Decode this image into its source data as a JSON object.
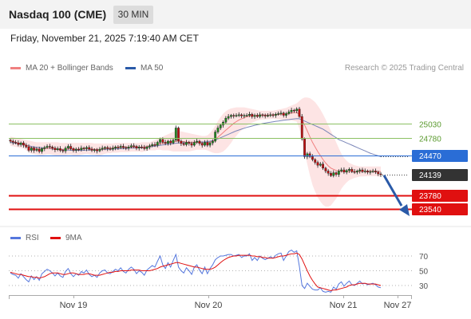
{
  "header": {
    "title": "Nasdaq 100 (CME)",
    "timeframe": "30 MIN"
  },
  "datetime": "Friday, November 21, 2025 7:19:40 AM CET",
  "legend": {
    "ma20_label": "MA 20 + Bollinger Bands",
    "ma50_label": "MA 50",
    "copyright": "Research © 2025 Trading Central",
    "rsi_label": "RSI",
    "ma9_label": "9MA"
  },
  "colors": {
    "ma20": "#f08080",
    "bollinger_fill": "#fde4e4",
    "ma50": "#7a86b8",
    "resistance": "#8cc063",
    "pivot": "#2a6dd6",
    "support": "#e01010",
    "last_price": "#333333",
    "candle_up": "#1f8a1f",
    "candle_down": "#c01010",
    "rsi": "#5577dd",
    "rsi_ma": "#e01010",
    "arrow": "#2a5aa8"
  },
  "chart_data": [
    {
      "type": "candlestick",
      "x": [
        "Nov 19",
        "Nov 20",
        "Nov 21",
        "Nov 27"
      ],
      "levels": [
        {
          "value": 25030,
          "label": "25030",
          "kind": "resistance"
        },
        {
          "value": 24780,
          "label": "24780",
          "kind": "resistance"
        },
        {
          "value": 24470,
          "label": "24470",
          "kind": "pivot"
        },
        {
          "value": 24139,
          "label": "24139",
          "kind": "last"
        },
        {
          "value": 23780,
          "label": "23780",
          "kind": "support"
        },
        {
          "value": 23540,
          "label": "23540",
          "kind": "support"
        }
      ],
      "close_series": [
        24720,
        24700,
        24690,
        24660,
        24690,
        24650,
        24620,
        24560,
        24600,
        24560,
        24580,
        24540,
        24590,
        24610,
        24630,
        24620,
        24600,
        24570,
        24590,
        24560,
        24550,
        24600,
        24630,
        24590,
        24560,
        24580,
        24570,
        24600,
        24590,
        24610,
        24580,
        24560,
        24570,
        24550,
        24580,
        24600,
        24610,
        24590,
        24580,
        24600,
        24620,
        24610,
        24630,
        24610,
        24600,
        24620,
        24640,
        24630,
        24600,
        24620,
        24610,
        24590,
        24620,
        24640,
        24660,
        24650,
        24700,
        24750,
        24700,
        24680,
        24720,
        24690,
        24740,
        24950,
        24720,
        24680,
        24660,
        24700,
        24680,
        24650,
        24700,
        24720,
        24680,
        24650,
        24700,
        24650,
        24690,
        24720,
        24880,
        24950,
        25000,
        25050,
        25120,
        25150,
        25170,
        25160,
        25170,
        25180,
        25160,
        25170,
        25170,
        25190,
        25150,
        25170,
        25150,
        25180,
        25170,
        25160,
        25170,
        25180,
        25170,
        25190,
        25200,
        25210,
        25170,
        25200,
        25230,
        25260,
        25250,
        25280,
        25150,
        24760,
        24450,
        24500,
        24450,
        24400,
        24350,
        24300,
        24320,
        24250,
        24200,
        24160,
        24120,
        24170,
        24140,
        24200,
        24220,
        24180,
        24210,
        24230,
        24190,
        24180,
        24200,
        24220,
        24190,
        24200,
        24180,
        24190,
        24200,
        24180,
        24150,
        24139
      ],
      "ma20_series": [
        24720,
        24710,
        24700,
        24690,
        24680,
        24670,
        24650,
        24630,
        24610,
        24600,
        24590,
        24585,
        24585,
        24590,
        24595,
        24595,
        24590,
        24585,
        24580,
        24575,
        24575,
        24580,
        24585,
        24585,
        24580,
        24580,
        24580,
        24585,
        24590,
        24595,
        24590,
        24585,
        24580,
        24575,
        24575,
        24580,
        24590,
        24595,
        24595,
        24600,
        24605,
        24605,
        24610,
        24610,
        24610,
        24610,
        24615,
        24615,
        24615,
        24615,
        24615,
        24620,
        24625,
        24630,
        24640,
        24650,
        24665,
        24675,
        24680,
        24690,
        24700,
        24705,
        24710,
        24720,
        24720,
        24715,
        24710,
        24705,
        24700,
        24700,
        24700,
        24700,
        24695,
        24690,
        24690,
        24690,
        24700,
        24720,
        24750,
        24790,
        24830,
        24870,
        24910,
        24950,
        24990,
        25030,
        25060,
        25090,
        25110,
        25130,
        25145,
        25155,
        25160,
        25165,
        25170,
        25172,
        25175,
        25175,
        25176,
        25178,
        25180,
        25182,
        25185,
        25188,
        25190,
        25195,
        25200,
        25210,
        25215,
        25220,
        25180,
        25100,
        25000,
        24900,
        24800,
        24700,
        24620,
        24540,
        24470,
        24400,
        24340,
        24290,
        24250,
        24230,
        24210,
        24200,
        24195,
        24190,
        24190,
        24190,
        24190,
        24190,
        24190,
        24192,
        24193,
        24194,
        24195,
        24195,
        24195,
        24195,
        24193,
        24190
      ],
      "bb_upper_series": [
        24800,
        24790,
        24780,
        24770,
        24760,
        24750,
        24740,
        24730,
        24720,
        24710,
        24700,
        24700,
        24700,
        24700,
        24700,
        24700,
        24700,
        24700,
        24700,
        24690,
        24690,
        24690,
        24690,
        24690,
        24690,
        24690,
        24690,
        24690,
        24690,
        24690,
        24690,
        24690,
        24680,
        24680,
        24680,
        24680,
        24680,
        24680,
        24680,
        24680,
        24690,
        24690,
        24690,
        24690,
        24690,
        24690,
        24690,
        24690,
        24690,
        24690,
        24700,
        24700,
        24700,
        24700,
        24720,
        24740,
        24760,
        24780,
        24800,
        24820,
        24840,
        24860,
        24880,
        24900,
        24900,
        24890,
        24880,
        24870,
        24860,
        24850,
        24840,
        24830,
        24820,
        24810,
        24810,
        24820,
        24860,
        24920,
        24990,
        25070,
        25140,
        25200,
        25240,
        25270,
        25290,
        25300,
        25310,
        25310,
        25310,
        25310,
        25300,
        25290,
        25280,
        25270,
        25260,
        25250,
        25250,
        25250,
        25250,
        25250,
        25250,
        25260,
        25270,
        25280,
        25290,
        25300,
        25320,
        25340,
        25360,
        25380,
        25420,
        25460,
        25480,
        25480,
        25470,
        25440,
        25400,
        25340,
        25270,
        25190,
        25100,
        25000,
        24900,
        24800,
        24700,
        24600,
        24500,
        24430,
        24380,
        24340,
        24320,
        24300,
        24290,
        24280,
        24280,
        24280,
        24280,
        24280,
        24280,
        24280,
        24280,
        24280
      ],
      "bb_lower_series": [
        24640,
        24630,
        24620,
        24610,
        24600,
        24590,
        24560,
        24530,
        24500,
        24490,
        24480,
        24470,
        24470,
        24480,
        24490,
        24490,
        24480,
        24470,
        24460,
        24460,
        24460,
        24470,
        24480,
        24480,
        24470,
        24470,
        24470,
        24480,
        24490,
        24500,
        24490,
        24480,
        24480,
        24470,
        24470,
        24480,
        24500,
        24510,
        24510,
        24520,
        24520,
        24520,
        24530,
        24530,
        24530,
        24530,
        24540,
        24540,
        24540,
        24540,
        24530,
        24540,
        24550,
        24560,
        24560,
        24560,
        24570,
        24570,
        24560,
        24560,
        24560,
        24550,
        24540,
        24540,
        24540,
        24540,
        24540,
        24540,
        24540,
        24550,
        24560,
        24570,
        24570,
        24570,
        24570,
        24560,
        24540,
        24520,
        24510,
        24510,
        24520,
        24540,
        24580,
        24630,
        24690,
        24760,
        24810,
        24870,
        24910,
        24950,
        24990,
        25020,
        25040,
        25060,
        25080,
        25094,
        25100,
        25100,
        25102,
        25106,
        25110,
        25104,
        25100,
        25096,
        25090,
        25090,
        25080,
        25080,
        25070,
        25060,
        24940,
        24740,
        24520,
        24320,
        24130,
        23960,
        23840,
        23740,
        23670,
        23610,
        23580,
        23580,
        23600,
        23660,
        23720,
        23800,
        23890,
        23950,
        24000,
        24040,
        24060,
        24080,
        24090,
        24104,
        24106,
        24108,
        24110,
        24110,
        24110,
        24110,
        24106,
        24100
      ],
      "ma50_series": [
        24700,
        24690,
        24685,
        24680,
        24670,
        24660,
        24650,
        24640,
        24630,
        24620,
        24615,
        24610,
        24605,
        24600,
        24595,
        24590,
        24585,
        24580,
        24575,
        24570,
        24568,
        24566,
        24564,
        24562,
        24560,
        24560,
        24560,
        24560,
        24562,
        24564,
        24566,
        24568,
        24570,
        24572,
        24574,
        24576,
        24578,
        24580,
        24582,
        24584,
        24586,
        24588,
        24590,
        24592,
        24594,
        24596,
        24598,
        24600,
        24602,
        24604,
        24606,
        24610,
        24614,
        24620,
        24626,
        24632,
        24640,
        24648,
        24654,
        24660,
        24666,
        24672,
        24678,
        24684,
        24688,
        24690,
        24692,
        24694,
        24696,
        24698,
        24700,
        24702,
        24704,
        24706,
        24708,
        24712,
        24720,
        24730,
        24745,
        24760,
        24780,
        24800,
        24820,
        24840,
        24860,
        24880,
        24900,
        24915,
        24930,
        24945,
        24960,
        24972,
        24984,
        24996,
        25006,
        25016,
        25026,
        25034,
        25042,
        25050,
        25058,
        25066,
        25072,
        25078,
        25084,
        25090,
        25096,
        25102,
        25108,
        25114,
        25110,
        25090,
        25070,
        25050,
        25030,
        25010,
        24990,
        24970,
        24950,
        24930,
        24900,
        24870,
        24840,
        24810,
        24780,
        24750,
        24730,
        24710,
        24690,
        24670,
        24650,
        24630,
        24610,
        24590,
        24570,
        24550,
        24530,
        24510,
        24495,
        24480,
        24465,
        24450
      ]
    },
    {
      "type": "line",
      "x": [
        "Nov 19",
        "Nov 20",
        "Nov 21",
        "Nov 27"
      ],
      "y_ticks": [
        70,
        50,
        30
      ],
      "ylim": [
        20,
        80
      ],
      "rsi_series": [
        47,
        45,
        44,
        40,
        46,
        42,
        38,
        35,
        43,
        38,
        42,
        37,
        46,
        49,
        52,
        50,
        47,
        43,
        47,
        43,
        41,
        49,
        53,
        46,
        42,
        46,
        44,
        49,
        47,
        51,
        45,
        42,
        44,
        41,
        47,
        50,
        51,
        47,
        46,
        49,
        52,
        50,
        54,
        49,
        47,
        52,
        55,
        52,
        46,
        50,
        48,
        44,
        51,
        54,
        57,
        55,
        63,
        70,
        58,
        53,
        61,
        55,
        64,
        72,
        55,
        50,
        47,
        54,
        50,
        45,
        55,
        58,
        51,
        46,
        55,
        46,
        53,
        58,
        65,
        68,
        70,
        70,
        71,
        72,
        72,
        70,
        71,
        72,
        68,
        70,
        70,
        73,
        64,
        68,
        64,
        70,
        67,
        65,
        67,
        69,
        67,
        71,
        73,
        74,
        64,
        70,
        76,
        78,
        75,
        77,
        56,
        30,
        26,
        33,
        29,
        25,
        24,
        24,
        27,
        22,
        21,
        22,
        21,
        28,
        25,
        32,
        35,
        29,
        33,
        36,
        31,
        30,
        33,
        36,
        32,
        33,
        31,
        32,
        33,
        31,
        28,
        27
      ],
      "rsi_ma_series": [
        48,
        47,
        46,
        45,
        45,
        44,
        43,
        42,
        42,
        41,
        41,
        40,
        41,
        42,
        44,
        46,
        47,
        47,
        47,
        46,
        45,
        45,
        46,
        47,
        47,
        46,
        45,
        45,
        45,
        46,
        46,
        45,
        44,
        44,
        44,
        45,
        46,
        47,
        48,
        48,
        49,
        49,
        50,
        50,
        50,
        50,
        51,
        51,
        51,
        51,
        50,
        50,
        50,
        50,
        51,
        52,
        53,
        55,
        56,
        57,
        58,
        59,
        60,
        61,
        61,
        60,
        59,
        58,
        57,
        56,
        55,
        55,
        54,
        53,
        52,
        52,
        52,
        53,
        55,
        58,
        61,
        64,
        66,
        68,
        69,
        70,
        70,
        71,
        71,
        71,
        71,
        71,
        70,
        70,
        69,
        69,
        68,
        68,
        67,
        67,
        67,
        68,
        69,
        70,
        70,
        71,
        72,
        73,
        73,
        74,
        72,
        66,
        58,
        50,
        43,
        37,
        32,
        28,
        27,
        26,
        25,
        24,
        23,
        24,
        24,
        25,
        26,
        27,
        28,
        30,
        31,
        31,
        32,
        33,
        33,
        33,
        32,
        32,
        32,
        32,
        31,
        30
      ]
    }
  ]
}
